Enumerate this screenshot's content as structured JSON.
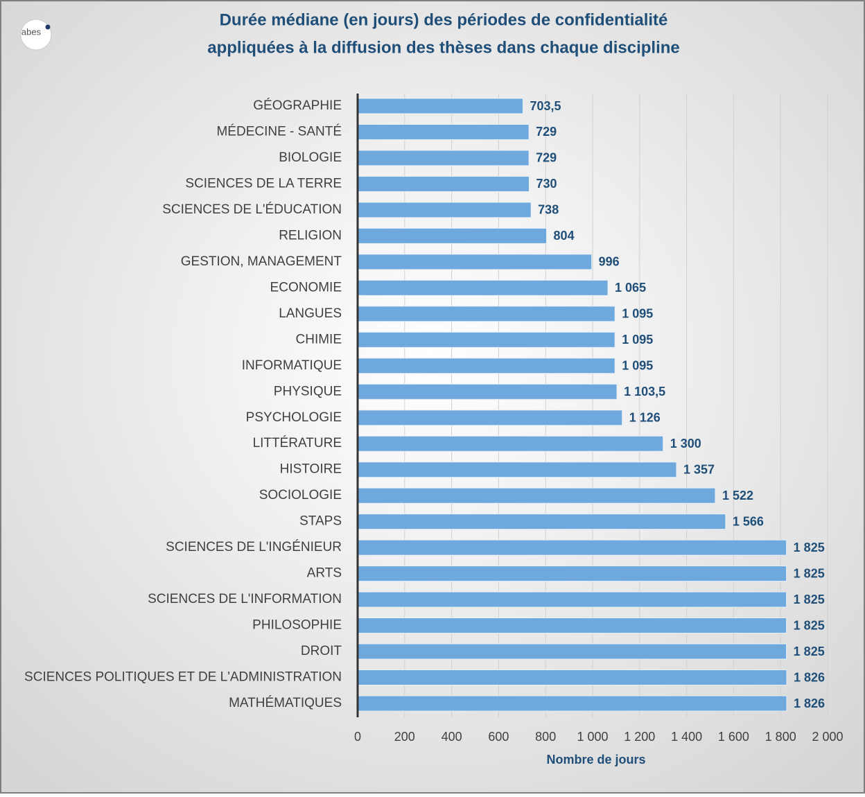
{
  "chart_data": {
    "type": "bar",
    "orientation": "horizontal",
    "logo": "abes",
    "title": [
      "Durée médiane (en jours) des périodes de confidentialité",
      "appliquées à la diffusion des thèses dans chaque discipline"
    ],
    "xlabel": "Nombre de jours",
    "categories": [
      "GÉOGRAPHIE",
      "MÉDECINE - SANTÉ",
      "BIOLOGIE",
      "SCIENCES DE LA TERRE",
      "SCIENCES DE L'ÉDUCATION",
      "RELIGION",
      "GESTION, MANAGEMENT",
      "ECONOMIE",
      "LANGUES",
      "CHIMIE",
      "INFORMATIQUE",
      "PHYSIQUE",
      "PSYCHOLOGIE",
      "LITTÉRATURE",
      "HISTOIRE",
      "SOCIOLOGIE",
      "STAPS",
      "SCIENCES DE L'INGÉNIEUR",
      "ARTS",
      "SCIENCES DE L'INFORMATION",
      "PHILOSOPHIE",
      "DROIT",
      "SCIENCES POLITIQUES ET DE L'ADMINISTRATION",
      "MATHÉMATIQUES"
    ],
    "values": [
      703.5,
      729,
      729,
      730,
      738,
      804,
      996,
      1065,
      1095,
      1095,
      1095,
      1103.5,
      1126,
      1300,
      1357,
      1522,
      1566,
      1825,
      1825,
      1825,
      1825,
      1825,
      1826,
      1826
    ],
    "value_labels": [
      "703,5",
      "729",
      "729",
      "730",
      "738",
      "804",
      "996",
      "1 065",
      "1 095",
      "1 095",
      "1 095",
      "1 103,5",
      "1 126",
      "1 300",
      "1 357",
      "1 522",
      "1 566",
      "1 825",
      "1 825",
      "1 825",
      "1 825",
      "1 825",
      "1 826",
      "1 826"
    ],
    "color": "#6fa8dc",
    "xlim": [
      0,
      2000
    ],
    "xticks": [
      0,
      200,
      400,
      600,
      800,
      {
        "value": 1000,
        "label": "1 000"
      },
      {
        "value": 1200,
        "label": "1 200"
      },
      {
        "value": 1400,
        "label": "1 400"
      },
      {
        "value": 1600,
        "label": "1 600"
      },
      {
        "value": 1800,
        "label": "1 800"
      },
      {
        "value": 2000,
        "label": "2 000"
      }
    ],
    "grid": true
  }
}
